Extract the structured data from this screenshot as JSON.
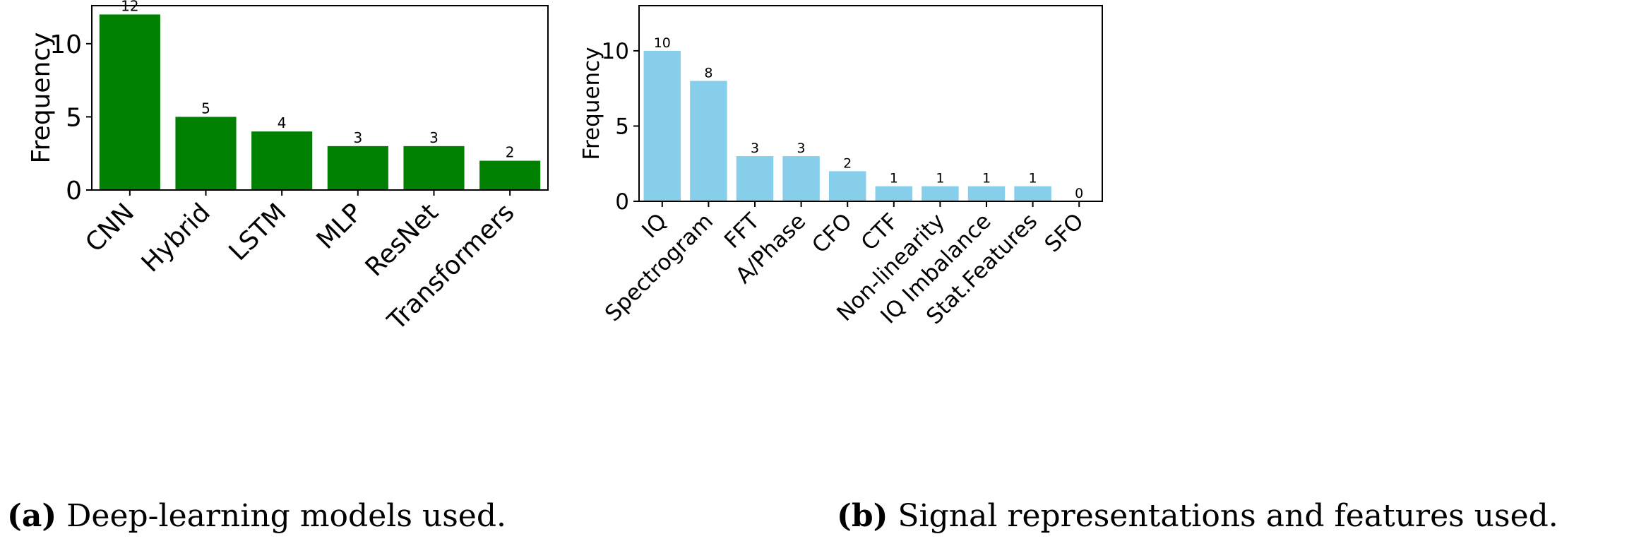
{
  "chart_data": [
    {
      "type": "bar",
      "categories": [
        "CNN",
        "Hybrid",
        "LSTM",
        "MLP",
        "ResNet",
        "Transformers"
      ],
      "values": [
        12,
        5,
        4,
        3,
        3,
        2
      ],
      "data_labels": [
        "12",
        "5",
        "4",
        "3",
        "3",
        "2"
      ],
      "ylabel": "Frequency",
      "yticks": [
        0,
        5,
        10
      ],
      "ytick_labels": [
        "0",
        "5",
        "10"
      ],
      "ylim": [
        0,
        12.6
      ],
      "bar_color": "#008000",
      "caption_tag": "(a)",
      "caption_text": "Deep-learning models used."
    },
    {
      "type": "bar",
      "categories": [
        "IQ",
        "Spectrogram",
        "FFT",
        "A/Phase",
        "CFO",
        "CTF",
        "Non-linearity",
        "IQ Imbalance",
        "Stat.Features",
        "SFO"
      ],
      "values": [
        10,
        8,
        3,
        3,
        2,
        1,
        1,
        1,
        1,
        0
      ],
      "data_labels": [
        "10",
        "8",
        "3",
        "3",
        "2",
        "1",
        "1",
        "1",
        "1",
        "0"
      ],
      "ylabel": "Frequency",
      "yticks": [
        0,
        5,
        10
      ],
      "ytick_labels": [
        "0",
        "5",
        "10"
      ],
      "ylim": [
        0,
        13
      ],
      "bar_color": "#87CEEB",
      "caption_tag": "(b)",
      "caption_text": "Signal representations and features used."
    }
  ]
}
